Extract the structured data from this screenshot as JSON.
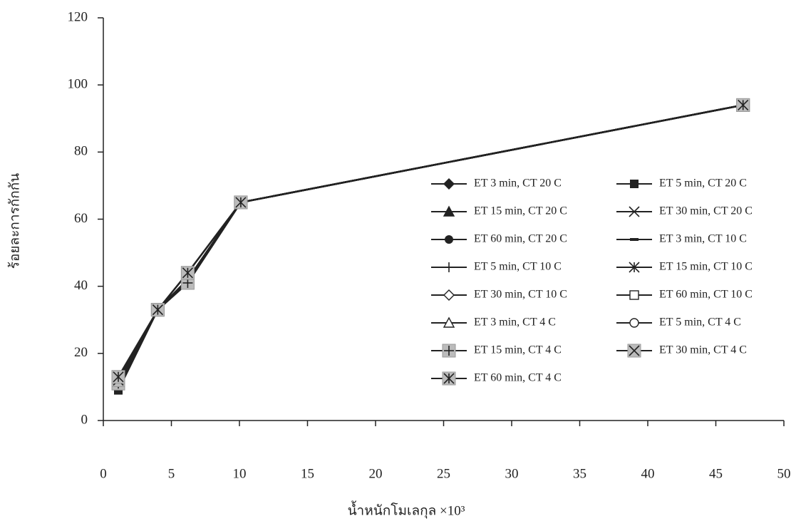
{
  "chart_data": {
    "type": "line",
    "x_label": "น้ำหนักโมเลกุล ×10³",
    "y_label": "ร้อยละการกักกัน",
    "x": [
      1.1,
      4,
      6.2,
      10.1,
      47
    ],
    "xlim": [
      0,
      50
    ],
    "xticks": [
      0,
      5,
      10,
      15,
      20,
      25,
      30,
      35,
      40,
      45,
      50
    ],
    "ylim": [
      0,
      120
    ],
    "yticks": [
      0,
      20,
      40,
      60,
      80,
      100,
      120
    ],
    "series": [
      {
        "name": "ET 3 min, CT 20 C",
        "marker": "diamond",
        "color": "#222",
        "values": [
          11,
          33,
          42,
          65,
          94
        ]
      },
      {
        "name": "ET 5 min, CT 20 C",
        "marker": "square",
        "color": "#222",
        "values": [
          9,
          33,
          42,
          65,
          94
        ]
      },
      {
        "name": "ET 15 min, CT 20 C",
        "marker": "triangle",
        "color": "#222",
        "values": [
          11,
          33,
          42,
          65,
          94
        ]
      },
      {
        "name": "ET 30 min, CT 20 C",
        "marker": "x",
        "color": "#222",
        "values": [
          11,
          33,
          42,
          65,
          94
        ]
      },
      {
        "name": "ET 60 min, CT 20 C",
        "marker": "circle",
        "color": "#222",
        "values": [
          11,
          33,
          42,
          65,
          94
        ]
      },
      {
        "name": "ET 3 min, CT 10 C",
        "marker": "dash",
        "color": "#222",
        "values": [
          10,
          33,
          41,
          65,
          94
        ]
      },
      {
        "name": "ET 5 min, CT 10 C",
        "marker": "plus",
        "color": "#222",
        "values": [
          11,
          33,
          41,
          65,
          94
        ]
      },
      {
        "name": "ET 15 min, CT 10 C",
        "marker": "star",
        "color": "#222",
        "values": [
          11,
          33,
          42,
          65,
          94
        ]
      },
      {
        "name": "ET 30 min, CT 10 C",
        "marker": "open-diamond",
        "color": "#222",
        "values": [
          11,
          33,
          42,
          65,
          94
        ]
      },
      {
        "name": "ET 60 min, CT 10 C",
        "marker": "open-square",
        "color": "#222",
        "values": [
          11,
          33,
          42,
          65,
          94
        ]
      },
      {
        "name": "ET 3 min, CT 4 C",
        "marker": "open-triangle",
        "color": "#222",
        "values": [
          11,
          33,
          42,
          65,
          94
        ]
      },
      {
        "name": "ET 5 min, CT 4 C",
        "marker": "open-circle",
        "color": "#222",
        "values": [
          11,
          33,
          42,
          65,
          94
        ]
      },
      {
        "name": "ET 15 min, CT 4 C",
        "marker": "grey-plus",
        "color": "#222",
        "values": [
          11,
          33,
          41,
          65,
          94
        ]
      },
      {
        "name": "ET 30 min, CT 4 C",
        "marker": "grey-x",
        "color": "#222",
        "values": [
          12,
          33,
          44,
          65,
          94
        ]
      },
      {
        "name": "ET 60 min, CT 4 C",
        "marker": "grey-star",
        "color": "#222",
        "values": [
          13,
          33,
          44,
          65,
          94
        ]
      }
    ]
  }
}
